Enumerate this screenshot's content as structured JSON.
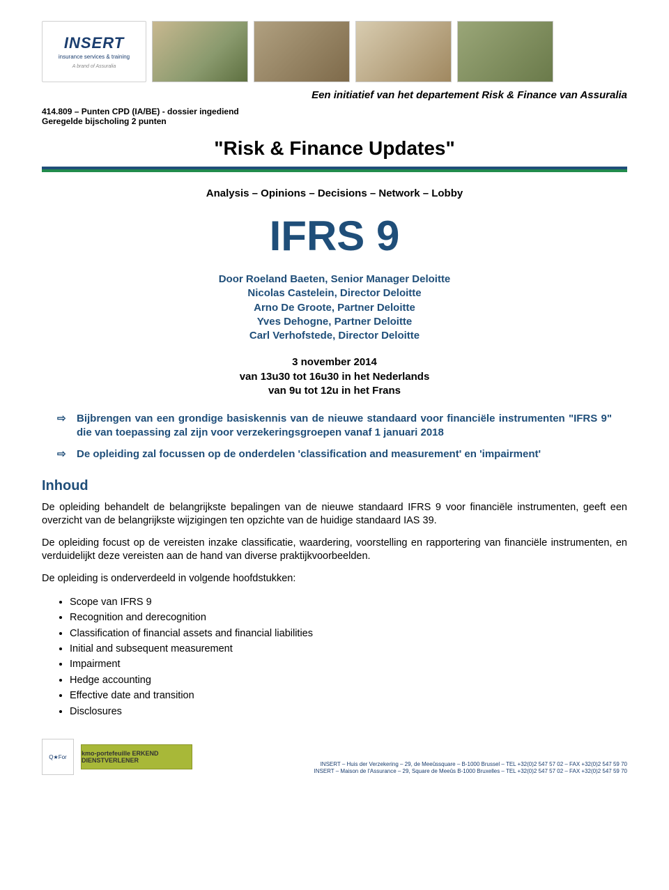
{
  "colors": {
    "primary_blue": "#1f4e79",
    "green": "#228b4c",
    "text": "#000000",
    "logo_blue": "#1a3d6e"
  },
  "logo": {
    "name": "INSERT",
    "sub": "insurance services & training",
    "brand": "A brand of Assuralia"
  },
  "header": {
    "initiative": "Een initiatief van het departement Risk & Finance van Assuralia",
    "cpd": "414.809 – Punten CPD (IA/BE) - dossier ingediend",
    "bijscholing": "Geregelde bijscholing 2 punten"
  },
  "title": "\"Risk & Finance Updates\"",
  "subtitle": "Analysis – Opinions – Decisions – Network – Lobby",
  "big_title": "IFRS 9",
  "speakers": [
    "Door  Roeland Baeten, Senior Manager Deloitte",
    "Nicolas Castelein, Director Deloitte",
    "Arno De Groote, Partner Deloitte",
    "Yves Dehogne, Partner Deloitte",
    "Carl Verhofstede, Director Deloitte"
  ],
  "date": {
    "day": "3 november 2014",
    "nl": "van 13u30 tot 16u30 in het Nederlands",
    "fr": "van 9u tot 12u in het Frans"
  },
  "arrow_bullets": [
    "Bijbrengen van een grondige basiskennis van de nieuwe standaard voor financiële instrumenten \"IFRS 9\" die van toepassing zal zijn voor verzekeringsgroepen vanaf 1 januari 2018",
    "De opleiding zal focussen op de onderdelen 'classification and measurement' en 'impairment'"
  ],
  "section": {
    "heading": "Inhoud",
    "p1": "De opleiding behandelt de belangrijkste bepalingen van de nieuwe standaard IFRS 9 voor financiële instrumenten, geeft een overzicht van de belangrijkste wijzigingen ten opzichte van de huidige standaard IAS 39.",
    "p2": "De opleiding focust op de vereisten inzake classificatie, waardering, voorstelling en rapportering van financiële instrumenten, en verduidelijkt deze vereisten aan de hand van diverse praktijkvoorbeelden.",
    "p3": "De opleiding is onderverdeeld in volgende hoofdstukken:",
    "items": [
      "Scope van IFRS 9",
      "Recognition and derecognition",
      "Classification of financial assets and financial liabilities",
      "Initial and subsequent measurement",
      "Impairment",
      "Hedge accounting",
      "Effective date and transition",
      "Disclosures"
    ]
  },
  "footer": {
    "qfor": "Q★For",
    "kmo": "kmo-portefeuille ERKEND DIENSTVERLENER",
    "addr1": "INSERT – Huis der Verzekering – 29, de Meeûssquare – B-1000 Brussel – TEL +32(0)2 547 57 02 – FAX +32(0)2 547 59 70",
    "addr2": "INSERT – Maison de l'Assurance – 29, Square de Meeûs B-1000 Bruxelles – TEL +32(0)2 547 57 02 – FAX +32(0)2 547 59 70"
  }
}
